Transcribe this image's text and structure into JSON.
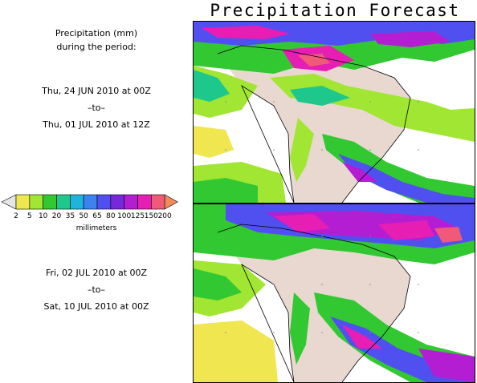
{
  "title": "Precipitation Forecast",
  "header": {
    "line1": "Precipitation (mm)",
    "line2": "during the period:"
  },
  "period1": {
    "start": "Thu, 24 JUN 2010 at 00Z",
    "sep": "–to–",
    "end": "Thu, 01 JUL 2010 at 12Z"
  },
  "period2": {
    "start": "Fri, 02 JUL 2010 at 00Z",
    "sep": "–to–",
    "end": "Sat, 10 JUL 2010 at 00Z"
  },
  "legend": {
    "unit": "millimeters",
    "levels": [
      "2",
      "5",
      "10",
      "20",
      "35",
      "50",
      "65",
      "80",
      "100",
      "125",
      "150",
      "200"
    ],
    "colors": [
      "#e6e6e6",
      "#f0e650",
      "#a0e632",
      "#32c832",
      "#1ec88c",
      "#1eb4dc",
      "#3c82f0",
      "#5050f0",
      "#7828dc",
      "#b41ed2",
      "#e61eb4",
      "#f05a78",
      "#f08c5a"
    ]
  },
  "map_colors": {
    "land": "#e8d8d0",
    "no_rain": "#ffffff",
    "border": "#000000",
    "grid_dot": "#888888"
  }
}
